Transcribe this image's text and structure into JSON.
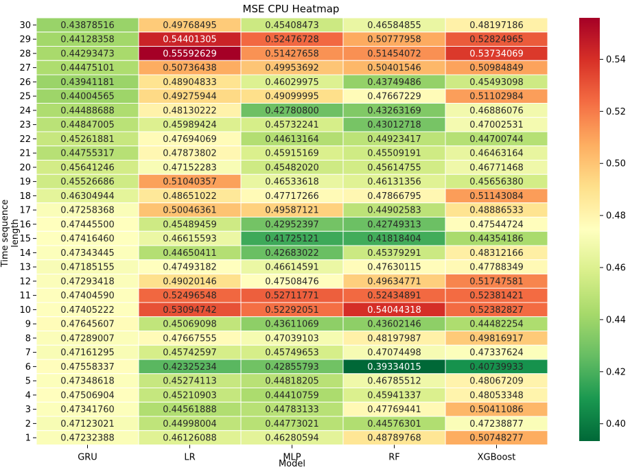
{
  "chart_data": {
    "type": "heatmap",
    "title": "MSE CPU Heatmap",
    "xlabel": "Model",
    "ylabel": "Time sequence length",
    "columns": [
      "GRU",
      "LR",
      "MLP",
      "RF",
      "XGBoost"
    ],
    "rows": [
      "30",
      "29",
      "28",
      "27",
      "26",
      "25",
      "24",
      "23",
      "22",
      "21",
      "20",
      "19",
      "18",
      "17",
      "16",
      "15",
      "14",
      "13",
      "12",
      "11",
      "10",
      "9",
      "8",
      "7",
      "6",
      "5",
      "4",
      "3",
      "2",
      "1"
    ],
    "values": [
      [
        "0.43878516",
        "0.49768495",
        "0.45408473",
        "0.46584855",
        "0.48197186"
      ],
      [
        "0.44128358",
        "0.54401305",
        "0.52476728",
        "0.50777958",
        "0.52824965"
      ],
      [
        "0.44293473",
        "0.55592629",
        "0.51427658",
        "0.51454072",
        "0.53734069"
      ],
      [
        "0.44475101",
        "0.50736438",
        "0.49953692",
        "0.50401546",
        "0.50984849"
      ],
      [
        "0.43941181",
        "0.48904833",
        "0.46029975",
        "0.43749486",
        "0.45493098"
      ],
      [
        "0.44004565",
        "0.49275944",
        "0.49099995",
        "0.47667229",
        "0.51102984"
      ],
      [
        "0.44488688",
        "0.48130222",
        "0.42780800",
        "0.43263169",
        "0.46886076"
      ],
      [
        "0.44847005",
        "0.45989424",
        "0.45732241",
        "0.43012718",
        "0.47002531"
      ],
      [
        "0.45261881",
        "0.47694069",
        "0.44613164",
        "0.44923417",
        "0.44700744"
      ],
      [
        "0.44755317",
        "0.47873802",
        "0.45915169",
        "0.45509191",
        "0.46463164"
      ],
      [
        "0.45641246",
        "0.47152283",
        "0.45482020",
        "0.45614755",
        "0.46771468"
      ],
      [
        "0.45526686",
        "0.51040357",
        "0.46533618",
        "0.46131356",
        "0.45656380"
      ],
      [
        "0.46304944",
        "0.48651022",
        "0.47717266",
        "0.47866795",
        "0.51143084"
      ],
      [
        "0.47258368",
        "0.50046361",
        "0.49587121",
        "0.44902583",
        "0.48886533"
      ],
      [
        "0.47445500",
        "0.45489459",
        "0.42952397",
        "0.42749313",
        "0.47544724"
      ],
      [
        "0.47416460",
        "0.46615593",
        "0.41725121",
        "0.41818404",
        "0.44354186"
      ],
      [
        "0.47343445",
        "0.44650411",
        "0.42683022",
        "0.45379291",
        "0.48312166"
      ],
      [
        "0.47185155",
        "0.47493182",
        "0.46614591",
        "0.47630115",
        "0.47788349"
      ],
      [
        "0.47293418",
        "0.49020146",
        "0.47508476",
        "0.49634771",
        "0.51747581"
      ],
      [
        "0.47404590",
        "0.52496548",
        "0.52711771",
        "0.52434891",
        "0.52381421"
      ],
      [
        "0.47405222",
        "0.53094742",
        "0.52292051",
        "0.54044318",
        "0.52382827"
      ],
      [
        "0.47645607",
        "0.45069098",
        "0.43611069",
        "0.43602146",
        "0.44482254"
      ],
      [
        "0.47289007",
        "0.47667555",
        "0.47039103",
        "0.48197987",
        "0.49816917"
      ],
      [
        "0.47161295",
        "0.45742597",
        "0.45749653",
        "0.47074498",
        "0.47337624"
      ],
      [
        "0.47558337",
        "0.42325234",
        "0.42855793",
        "0.39334015",
        "0.40739933"
      ],
      [
        "0.47348618",
        "0.45274113",
        "0.44818205",
        "0.46785512",
        "0.48067209"
      ],
      [
        "0.47506904",
        "0.45210903",
        "0.44410759",
        "0.45941337",
        "0.48053348"
      ],
      [
        "0.47341760",
        "0.44561888",
        "0.44783133",
        "0.47769441",
        "0.50411086"
      ],
      [
        "0.47123021",
        "0.44998004",
        "0.44773021",
        "0.44576301",
        "0.47238877"
      ],
      [
        "0.47232388",
        "0.46126088",
        "0.46280594",
        "0.48789768",
        "0.50748277"
      ]
    ],
    "colorscale": "RdYlGn_r",
    "vmin": 0.39334015,
    "vmax": 0.55592629,
    "colorbar_ticks": [
      "0.40",
      "0.42",
      "0.44",
      "0.46",
      "0.48",
      "0.50",
      "0.52",
      "0.54"
    ],
    "grid": false,
    "colorbar": "right"
  }
}
